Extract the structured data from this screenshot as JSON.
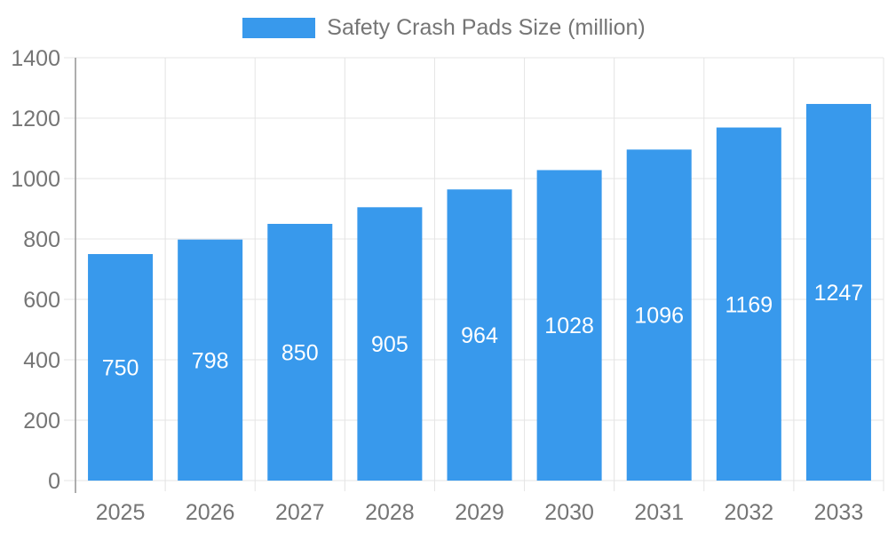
{
  "chart_data": {
    "type": "bar",
    "title": "Safety Crash Pads Size (million)",
    "categories": [
      "2025",
      "2026",
      "2027",
      "2028",
      "2029",
      "2030",
      "2031",
      "2032",
      "2033"
    ],
    "values": [
      750,
      798,
      850,
      905,
      964,
      1028,
      1096,
      1169,
      1247
    ],
    "xlabel": "",
    "ylabel": "",
    "ylim": [
      0,
      1400
    ],
    "ytick_step": 200,
    "grid": true,
    "legend_position": "top-center",
    "value_label_position": "inside-center",
    "colors": {
      "bar": "#3899ec",
      "axis_text": "#757575",
      "grid": "#e4e4e4",
      "axis_line": "#949494",
      "value_label": "#ffffff",
      "background": "#ffffff"
    }
  }
}
